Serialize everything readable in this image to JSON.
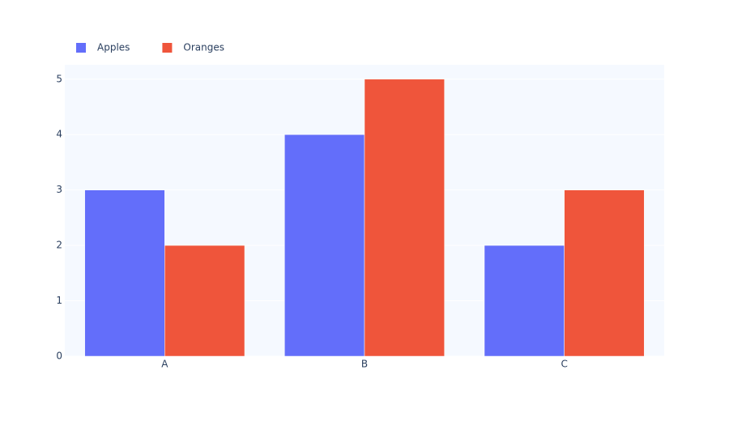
{
  "chart_data": {
    "type": "bar",
    "categories": [
      "A",
      "B",
      "C"
    ],
    "series": [
      {
        "name": "Apples",
        "color": "#636efa",
        "values": [
          3,
          4,
          2
        ]
      },
      {
        "name": "Oranges",
        "color": "#ef553b",
        "values": [
          2,
          5,
          3
        ]
      }
    ],
    "ylim": [
      0,
      5.26
    ],
    "yticks": [
      0,
      1,
      2,
      3,
      4,
      5
    ],
    "grid": true,
    "legend": "top-left"
  }
}
